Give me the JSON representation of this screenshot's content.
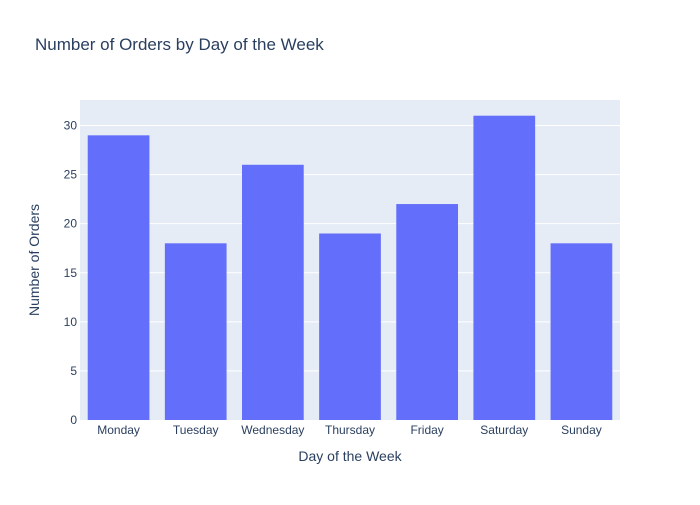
{
  "chart_data": {
    "type": "bar",
    "title": "Number of Orders by Day of the Week",
    "xlabel": "Day of the Week",
    "ylabel": "Number of Orders",
    "categories": [
      "Monday",
      "Tuesday",
      "Wednesday",
      "Thursday",
      "Friday",
      "Saturday",
      "Sunday"
    ],
    "values": [
      29,
      18,
      26,
      19,
      22,
      31,
      18
    ],
    "ylim": [
      0,
      32.6
    ],
    "yticks": [
      0,
      5,
      10,
      15,
      20,
      25,
      30
    ],
    "grid": true,
    "colors": {
      "bar": "#636efa",
      "plot_bg": "#e5ecf6",
      "grid": "#ffffff",
      "text": "#2a3f5f"
    }
  }
}
